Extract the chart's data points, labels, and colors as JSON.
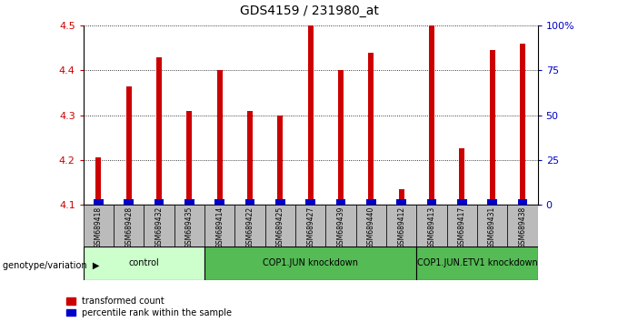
{
  "title": "GDS4159 / 231980_at",
  "samples": [
    "GSM689418",
    "GSM689428",
    "GSM689432",
    "GSM689435",
    "GSM689414",
    "GSM689422",
    "GSM689425",
    "GSM689427",
    "GSM689439",
    "GSM689440",
    "GSM689412",
    "GSM689413",
    "GSM689417",
    "GSM689431",
    "GSM689438"
  ],
  "red_values": [
    4.205,
    4.365,
    4.43,
    4.31,
    4.4,
    4.31,
    4.3,
    4.5,
    4.4,
    4.44,
    4.135,
    4.5,
    4.225,
    4.445,
    4.46
  ],
  "blue_values": [
    0.012,
    0.012,
    0.012,
    0.012,
    0.012,
    0.012,
    0.012,
    0.012,
    0.012,
    0.012,
    0.012,
    0.012,
    0.012,
    0.012,
    0.012
  ],
  "bar_base": 4.1,
  "ylim_left": [
    4.1,
    4.5
  ],
  "ylim_right": [
    0,
    100
  ],
  "right_ticks": [
    0,
    25,
    50,
    75,
    100
  ],
  "right_tick_labels": [
    "0",
    "25",
    "50",
    "75",
    "100%"
  ],
  "left_ticks": [
    4.1,
    4.2,
    4.3,
    4.4,
    4.5
  ],
  "groups": [
    {
      "label": "control",
      "start": 0,
      "end": 4,
      "color": "#ccffcc"
    },
    {
      "label": "COP1.JUN knockdown",
      "start": 4,
      "end": 11,
      "color": "#55bb55"
    },
    {
      "label": "COP1.JUN.ETV1 knockdown",
      "start": 11,
      "end": 15,
      "color": "#55bb55"
    }
  ],
  "red_color": "#cc0000",
  "blue_color": "#0000cc",
  "bar_width": 0.18,
  "xlabel": "genotype/variation",
  "legend_red": "transformed count",
  "legend_blue": "percentile rank within the sample",
  "tick_label_color": "#cc0000",
  "right_tick_color": "#0000cc",
  "sample_box_color": "#bbbbbb",
  "spine_color": "#888888"
}
